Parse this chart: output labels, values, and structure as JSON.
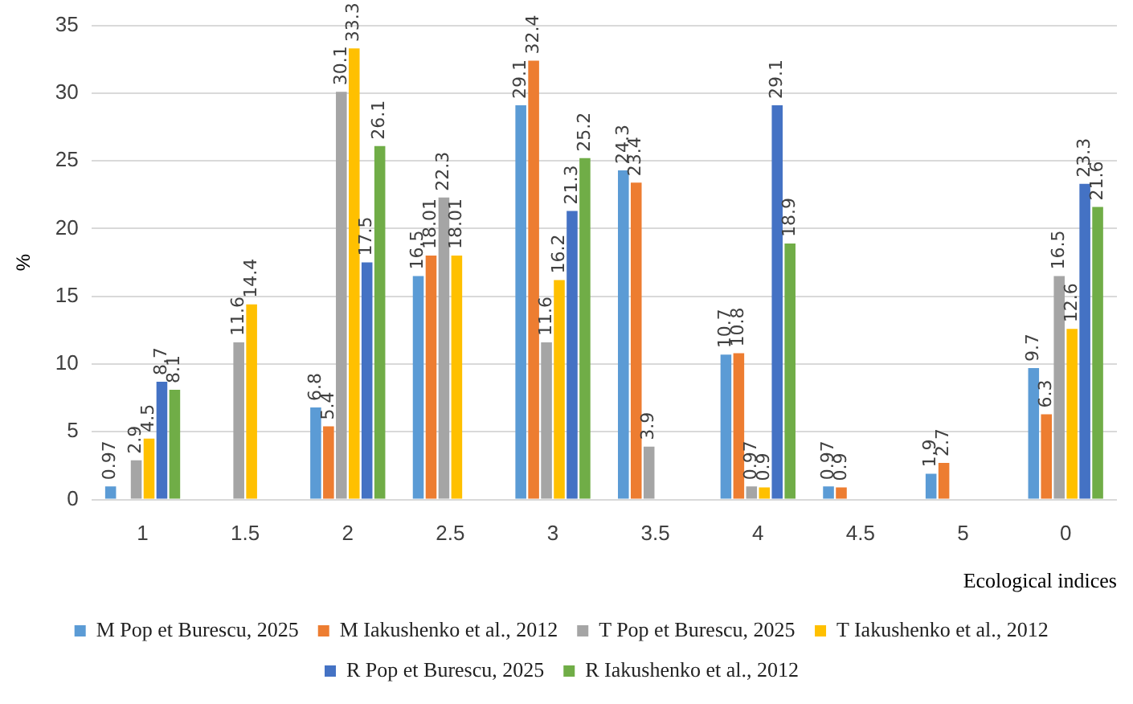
{
  "chart_data": {
    "type": "bar",
    "xlabel": "Ecological indices",
    "ylabel": "%",
    "categories": [
      "1",
      "1.5",
      "2",
      "2.5",
      "3",
      "3.5",
      "4",
      "4.5",
      "5",
      "0"
    ],
    "series": [
      {
        "name": "M Pop et Burescu, 2025",
        "color": "#5b9bd5",
        "values": [
          0.97,
          null,
          6.8,
          16.5,
          29.1,
          24.3,
          10.7,
          0.97,
          1.9,
          9.7
        ]
      },
      {
        "name": "M Iakushenko et al., 2012",
        "color": "#ed7d31",
        "values": [
          null,
          null,
          5.4,
          18.01,
          32.4,
          23.4,
          10.8,
          0.9,
          2.7,
          6.3
        ]
      },
      {
        "name": "T Pop et Burescu, 2025",
        "color": "#a5a5a5",
        "values": [
          2.9,
          11.6,
          30.1,
          22.3,
          11.6,
          3.9,
          0.97,
          null,
          null,
          16.5
        ]
      },
      {
        "name": "T Iakushenko et al., 2012",
        "color": "#ffc000",
        "values": [
          4.5,
          14.4,
          33.3,
          18.01,
          16.2,
          null,
          0.9,
          null,
          null,
          12.6
        ]
      },
      {
        "name": "R Pop et Burescu, 2025",
        "color": "#4472c4",
        "values": [
          8.7,
          null,
          17.5,
          null,
          21.3,
          null,
          29.1,
          null,
          null,
          23.3
        ]
      },
      {
        "name": "R Iakushenko et al., 2012",
        "color": "#70ad47",
        "values": [
          8.1,
          null,
          26.1,
          null,
          25.2,
          null,
          18.9,
          null,
          null,
          21.6
        ]
      }
    ],
    "ylim": [
      0,
      35
    ],
    "yticks": [
      0,
      5,
      10,
      15,
      20,
      25,
      30,
      35
    ],
    "grid": "y",
    "legend": "bottom",
    "data_labels": true
  }
}
